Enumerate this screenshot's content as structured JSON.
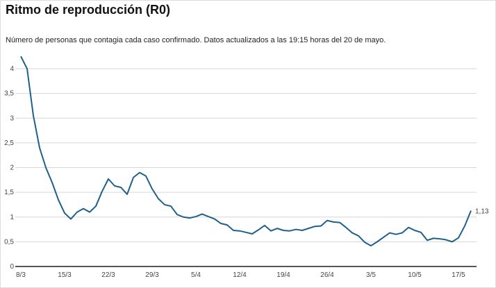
{
  "chart_data": {
    "type": "line",
    "title": "Ritmo de reproducción (R0)",
    "subtitle": "Número de personas que contagia cada caso confirmado. Datos actualizados a las 19:15 horas del 20 de mayo.",
    "xlabel": "",
    "ylabel": "",
    "ylim": [
      0,
      4
    ],
    "yticks": [
      "0",
      "0,5",
      "1",
      "1,5",
      "2",
      "2,5",
      "3",
      "3,5",
      "4"
    ],
    "xticks": [
      "8/3",
      "15/3",
      "22/3",
      "29/3",
      "5/4",
      "12/4",
      "19/4",
      "26/4",
      "3/5",
      "10/5",
      "17/5"
    ],
    "x_start": "8/3",
    "x_end": "19/5",
    "grid": true,
    "color": "#1f5f8b",
    "end_label": "1,13",
    "series": [
      {
        "values": [
          4.25,
          4.0,
          3.05,
          2.4,
          2.0,
          1.7,
          1.35,
          1.08,
          0.96,
          1.1,
          1.17,
          1.1,
          1.22,
          1.52,
          1.77,
          1.63,
          1.6,
          1.46,
          1.8,
          1.9,
          1.83,
          1.57,
          1.37,
          1.25,
          1.22,
          1.05,
          1.0,
          0.98,
          1.01,
          1.06,
          1.01,
          0.96,
          0.87,
          0.84,
          0.73,
          0.72,
          0.69,
          0.66,
          0.74,
          0.83,
          0.72,
          0.77,
          0.73,
          0.72,
          0.75,
          0.73,
          0.77,
          0.81,
          0.82,
          0.93,
          0.9,
          0.89,
          0.79,
          0.68,
          0.62,
          0.49,
          0.42,
          0.5,
          0.59,
          0.68,
          0.65,
          0.68,
          0.79,
          0.73,
          0.69,
          0.53,
          0.57,
          0.56,
          0.54,
          0.5,
          0.58,
          0.82,
          1.13
        ]
      }
    ]
  }
}
